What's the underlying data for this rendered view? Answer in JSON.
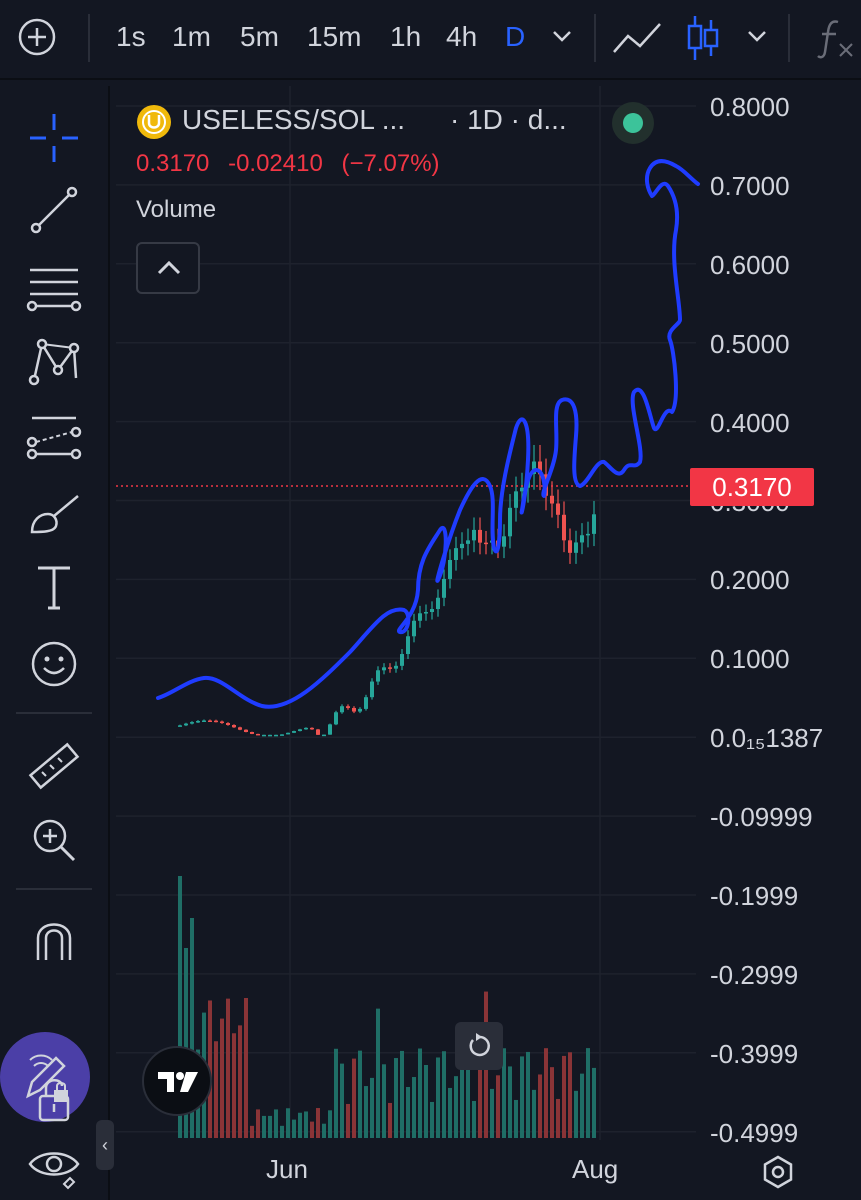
{
  "toolbar": {
    "timeframes": [
      "1s",
      "1m",
      "5m",
      "15m",
      "1h",
      "4h",
      "D"
    ],
    "active_timeframe": "D",
    "icons": [
      "add-symbol-icon",
      "chevron-down-icon",
      "line-chart-icon",
      "candles-icon",
      "chevron-down-icon",
      "indicators-fx-icon"
    ]
  },
  "sidebar": {
    "tools": [
      "crosshair-icon",
      "trend-line-icon",
      "fib-retracement-icon",
      "pattern-icon",
      "forecast-icon",
      "brush-icon",
      "text-icon",
      "emoji-icon",
      "ruler-icon",
      "zoom-in-icon",
      "magnet-icon",
      "pen-lock-icon",
      "lock-icon",
      "eye-icon"
    ]
  },
  "legend": {
    "symbol": "USELESS/SOL ...",
    "interval": "· 1D · d...",
    "last": "0.3170",
    "change": "-0.02410",
    "change_pct": "(−7.07%)",
    "volume_label": "Volume"
  },
  "price_axis": {
    "labels": [
      "0.8000",
      "0.7000",
      "0.6000",
      "0.5000",
      "0.4000",
      "0.3000",
      "0.2000",
      "0.1000",
      "0.0₁₅1387",
      "-0.09999",
      "-0.1999",
      "-0.2999",
      "-0.3999",
      "-0.4999"
    ],
    "current_price": "0.3170"
  },
  "time_axis": {
    "labels": [
      "Jun",
      "Aug"
    ]
  },
  "colors": {
    "background": "#131722",
    "up": "#26a69a",
    "down": "#ef5350",
    "accent": "#2962ff",
    "drawing": "#1f3cff",
    "price_tag": "#f23645"
  }
}
